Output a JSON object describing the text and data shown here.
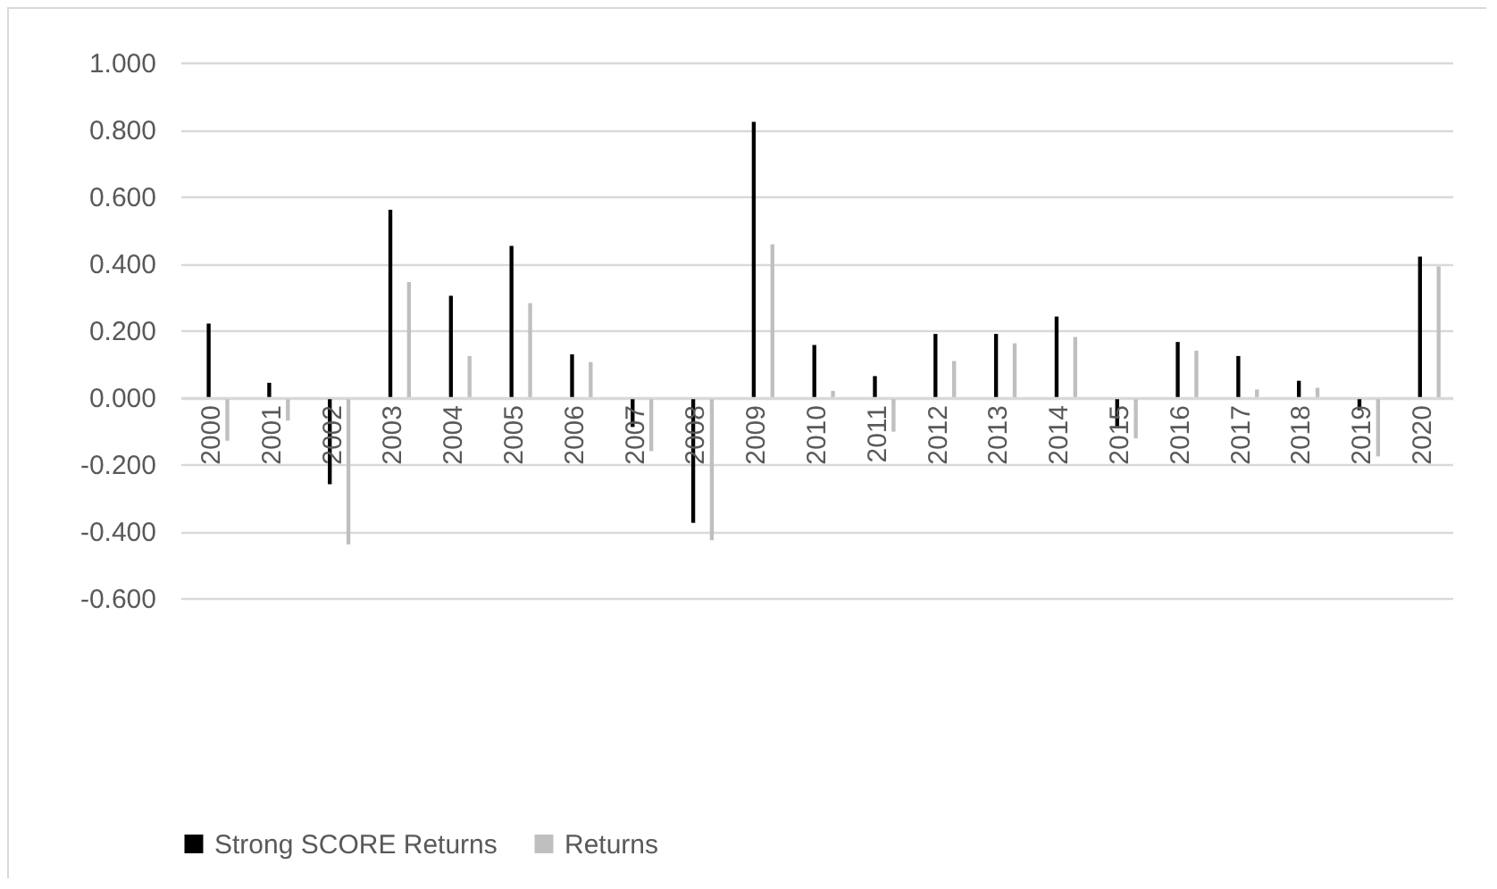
{
  "chart_data": {
    "type": "bar",
    "categories": [
      "2000",
      "2001",
      "2002",
      "2003",
      "2004",
      "2005",
      "2006",
      "2007",
      "2008",
      "2009",
      "2010",
      "2011",
      "2012",
      "2013",
      "2014",
      "2015",
      "2016",
      "2017",
      "2018",
      "2019",
      "2020"
    ],
    "series": [
      {
        "name": "Strong SCORE Returns",
        "color": "#000000",
        "values": [
          0.22,
          0.043,
          -0.26,
          0.56,
          0.303,
          0.452,
          0.128,
          -0.089,
          -0.375,
          0.823,
          0.156,
          0.063,
          0.189,
          0.189,
          0.241,
          -0.092,
          0.165,
          0.123,
          0.049,
          -0.039,
          0.42
        ]
      },
      {
        "name": "Returns",
        "color": "#bfbfbf",
        "values": [
          -0.13,
          -0.07,
          -0.44,
          0.344,
          0.123,
          0.281,
          0.105,
          -0.161,
          -0.427,
          0.457,
          0.019,
          -0.103,
          0.108,
          0.161,
          0.18,
          -0.123,
          0.139,
          0.023,
          0.028,
          -0.177,
          0.391
        ]
      }
    ],
    "ylim": [
      -0.6,
      1.0
    ],
    "yticks": [
      {
        "value": -0.6,
        "label": "-0.600"
      },
      {
        "value": -0.4,
        "label": "-0.400"
      },
      {
        "value": -0.2,
        "label": "-0.200"
      },
      {
        "value": 0,
        "label": "0.000"
      },
      {
        "value": 0.2,
        "label": "0.200"
      },
      {
        "value": 0.4,
        "label": "0.400"
      },
      {
        "value": 0.6,
        "label": "0.600"
      },
      {
        "value": 0.8,
        "label": "0.800"
      },
      {
        "value": 1.0,
        "label": "1.000"
      }
    ],
    "grid": "y",
    "legend": "bottom"
  }
}
